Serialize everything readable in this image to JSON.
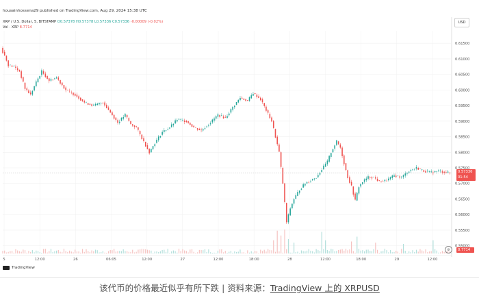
{
  "header": {
    "publisher": "housainhossena29 published on TradingView.com, Aug 29, 2024 15:38 UTC",
    "symbol": "XRP / U.S. Dollar, 5, BITSTAMP",
    "open": "O0.57378",
    "high": "H0.57378",
    "low": "L0.57336",
    "close": "C0.57336",
    "change": "-0.00009 (-0.02%)",
    "vol_label": "Vol · XRP",
    "vol_value": "8.7714",
    "currency": "USD"
  },
  "price_tag": {
    "price": "0.57336",
    "time": "01:54"
  },
  "vol_tag": "8.7714",
  "footer_logo": "TradingView",
  "caption": {
    "text": "该代币的价格最近似乎有所下跌 | 资料来源：",
    "link": "TradingView 上的 XRPUSD"
  },
  "colors": {
    "up": "#26a69a",
    "down": "#ef5350",
    "grid": "#f0f0f0",
    "axis_text": "#555555"
  },
  "chart_data": {
    "type": "candlestick",
    "y_axis": {
      "range": [
        0.5475,
        0.619
      ],
      "ticks": [
        "0.61500",
        "0.61000",
        "0.60500",
        "0.60000",
        "0.59500",
        "0.59000",
        "0.58500",
        "0.58000",
        "0.57500",
        "0.57000",
        "0.56500",
        "0.56000",
        "0.55500",
        "0.55000"
      ],
      "side": "right"
    },
    "x_axis": {
      "ticks": [
        "5",
        "12:00",
        "26",
        "06:05",
        "12:00",
        "27",
        "12:00",
        "18:00",
        "28",
        "12:00",
        "18:00",
        "29",
        "12:00"
      ]
    },
    "last_price": 0.57336,
    "price_path": [
      [
        0,
        0.6135
      ],
      [
        2,
        0.611
      ],
      [
        4,
        0.608
      ],
      [
        7,
        0.6075
      ],
      [
        10,
        0.606
      ],
      [
        13,
        0.6005
      ],
      [
        16,
        0.5985
      ],
      [
        19,
        0.6025
      ],
      [
        22,
        0.606
      ],
      [
        26,
        0.603
      ],
      [
        30,
        0.604
      ],
      [
        35,
        0.6
      ],
      [
        40,
        0.5985
      ],
      [
        45,
        0.596
      ],
      [
        50,
        0.595
      ],
      [
        55,
        0.596
      ],
      [
        60,
        0.592
      ],
      [
        63,
        0.5895
      ],
      [
        67,
        0.592
      ],
      [
        70,
        0.589
      ],
      [
        73,
        0.588
      ],
      [
        76,
        0.5845
      ],
      [
        80,
        0.58
      ],
      [
        83,
        0.583
      ],
      [
        87,
        0.5865
      ],
      [
        91,
        0.588
      ],
      [
        95,
        0.5905
      ],
      [
        100,
        0.59
      ],
      [
        104,
        0.588
      ],
      [
        108,
        0.587
      ],
      [
        112,
        0.589
      ],
      [
        117,
        0.592
      ],
      [
        121,
        0.591
      ],
      [
        125,
        0.5945
      ],
      [
        129,
        0.5975
      ],
      [
        133,
        0.5965
      ],
      [
        136,
        0.599
      ],
      [
        140,
        0.597
      ],
      [
        143,
        0.5935
      ],
      [
        146,
        0.59
      ],
      [
        148,
        0.585
      ],
      [
        150,
        0.58
      ],
      [
        152,
        0.57
      ],
      [
        154,
        0.5575
      ],
      [
        156,
        0.562
      ],
      [
        158,
        0.565
      ],
      [
        161,
        0.568
      ],
      [
        164,
        0.57
      ],
      [
        167,
        0.571
      ],
      [
        170,
        0.572
      ],
      [
        173,
        0.5745
      ],
      [
        176,
        0.577
      ],
      [
        178,
        0.58
      ],
      [
        181,
        0.5835
      ],
      [
        183,
        0.5815
      ],
      [
        185,
        0.5765
      ],
      [
        187,
        0.572
      ],
      [
        189,
        0.569
      ],
      [
        191,
        0.5645
      ],
      [
        193,
        0.569
      ],
      [
        195,
        0.5705
      ],
      [
        198,
        0.572
      ],
      [
        201,
        0.572
      ],
      [
        204,
        0.5705
      ],
      [
        208,
        0.571
      ],
      [
        212,
        0.5725
      ],
      [
        216,
        0.572
      ],
      [
        220,
        0.574
      ],
      [
        224,
        0.575
      ],
      [
        228,
        0.574
      ],
      [
        232,
        0.5735
      ],
      [
        236,
        0.574
      ],
      [
        240,
        0.5735
      ],
      [
        242,
        0.5734
      ]
    ],
    "volume_spikes": [
      [
        146,
        0.55
      ],
      [
        148,
        0.95
      ],
      [
        150,
        0.75
      ],
      [
        152,
        1.0
      ],
      [
        154,
        0.6
      ],
      [
        157,
        0.45
      ],
      [
        172,
        0.9
      ],
      [
        174,
        0.55
      ],
      [
        188,
        0.5
      ],
      [
        191,
        0.7
      ],
      [
        201,
        0.45
      ],
      [
        216,
        0.4
      ],
      [
        232,
        0.55
      ]
    ]
  }
}
